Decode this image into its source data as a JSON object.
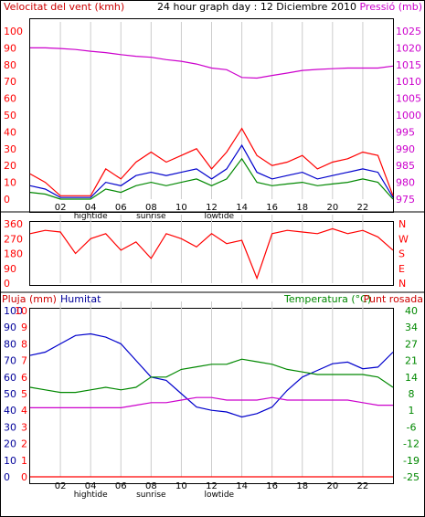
{
  "chart_data": [
    {
      "type": "line",
      "panel": "wind-pressure",
      "title": "24 hour graph day : 12 Diciembre 2010",
      "left_label": "Velocitat del vent (kmh)",
      "right_label": "Pressió (mb)",
      "left_ticks": [
        "100",
        "90",
        "80",
        "70",
        "60",
        "50",
        "40",
        "30",
        "20",
        "10",
        "0"
      ],
      "left_range": [
        0,
        100
      ],
      "right_ticks": [
        "1025",
        "1020",
        "1015",
        "1010",
        "1005",
        "1000",
        "995",
        "990",
        "985",
        "980",
        "975"
      ],
      "right_range": [
        975,
        1025
      ],
      "x_hours": [
        0,
        1,
        2,
        3,
        4,
        5,
        6,
        7,
        8,
        9,
        10,
        11,
        12,
        13,
        14,
        15,
        16,
        17,
        18,
        19,
        20,
        21,
        22,
        23,
        24
      ],
      "series": [
        {
          "key": "pressure",
          "axis": "right",
          "color": "#cc00cc",
          "values": [
            1020,
            1020,
            1019.8,
            1019.5,
            1019,
            1018.6,
            1018,
            1017.5,
            1017.2,
            1016.5,
            1016,
            1015.2,
            1014,
            1013.5,
            1011.2,
            1011,
            1011.8,
            1012.5,
            1013.3,
            1013.6,
            1013.8,
            1014,
            1014,
            1014,
            1014.6
          ]
        },
        {
          "key": "gust",
          "axis": "left",
          "color": "#ff0000",
          "values": [
            15,
            10,
            2,
            2,
            2,
            18,
            12,
            22,
            28,
            22,
            26,
            30,
            18,
            28,
            42,
            26,
            20,
            22,
            26,
            18,
            22,
            24,
            28,
            26,
            2
          ]
        },
        {
          "key": "avg_speed",
          "axis": "left",
          "color": "#0000cc",
          "values": [
            8,
            6,
            1,
            1,
            1,
            10,
            8,
            14,
            16,
            14,
            16,
            18,
            12,
            18,
            32,
            16,
            12,
            14,
            16,
            12,
            14,
            16,
            18,
            16,
            1
          ]
        },
        {
          "key": "min_speed",
          "axis": "left",
          "color": "#008800",
          "values": [
            4,
            3,
            0,
            0,
            0,
            6,
            4,
            8,
            10,
            8,
            10,
            12,
            8,
            12,
            24,
            10,
            8,
            9,
            10,
            8,
            9,
            10,
            12,
            10,
            0
          ]
        }
      ]
    },
    {
      "type": "line",
      "panel": "wind-direction",
      "left_ticks": [
        "360",
        "270",
        "180",
        "90",
        "0"
      ],
      "right_ticks": [
        "N",
        "W",
        "S",
        "E",
        "N"
      ],
      "range": [
        0,
        360
      ],
      "series": [
        {
          "key": "direction",
          "color": "#ff0000",
          "values": [
            300,
            320,
            310,
            180,
            270,
            300,
            200,
            250,
            150,
            300,
            270,
            220,
            300,
            240,
            260,
            30,
            300,
            320,
            310,
            300,
            330,
            300,
            320,
            280,
            200
          ]
        }
      ]
    },
    {
      "type": "line",
      "panel": "temp-hum-rain",
      "left_label": "Pluja (mm)",
      "left2_label": "Humitat",
      "right_label": "Temperatura (°C)",
      "right2_label": "Punt rosada",
      "rain_ticks": [
        "10",
        "9",
        "8",
        "7",
        "6",
        "5",
        "4",
        "3",
        "2",
        "1",
        "0"
      ],
      "hum_ticks": [
        "100",
        "90",
        "80",
        "70",
        "60",
        "50",
        "40",
        "30",
        "20",
        "10",
        "0"
      ],
      "temp_ticks": [
        "40",
        "34",
        "27",
        "21",
        "14",
        "8",
        "1",
        "-6",
        "-12",
        "-19",
        "-25"
      ],
      "temp_range": [
        -25,
        40
      ],
      "series": [
        {
          "key": "humidity",
          "axis": "hum",
          "color": "#0000cc",
          "values": [
            73,
            75,
            80,
            85,
            86,
            84,
            80,
            70,
            60,
            58,
            50,
            42,
            40,
            39,
            36,
            38,
            42,
            52,
            60,
            64,
            68,
            69,
            65,
            66,
            75
          ]
        },
        {
          "key": "temperature",
          "axis": "temp",
          "color": "#008800",
          "values": [
            10,
            9,
            8,
            8,
            9,
            10,
            9,
            10,
            14,
            14,
            17,
            18,
            19,
            19,
            21,
            20,
            19,
            17,
            16,
            15,
            15,
            15,
            15,
            14,
            10
          ]
        },
        {
          "key": "dew_point",
          "axis": "temp",
          "color": "#cc00cc",
          "values": [
            2,
            2,
            2,
            2,
            2,
            2,
            2,
            3,
            4,
            4,
            5,
            6,
            6,
            5,
            5,
            5,
            6,
            5,
            5,
            5,
            5,
            5,
            4,
            3,
            3
          ]
        },
        {
          "key": "rain",
          "axis": "rain",
          "color": "#ff0000",
          "values": [
            0,
            0,
            0,
            0,
            0,
            0,
            0,
            0,
            0,
            0,
            0,
            0,
            0,
            0,
            0,
            0,
            0,
            0,
            0,
            0,
            0,
            0,
            0,
            0,
            0
          ]
        }
      ]
    }
  ],
  "x_ticks": [
    "02",
    "04",
    "06",
    "08",
    "10",
    "12",
    "14",
    "16",
    "18",
    "20",
    "22"
  ],
  "x_tick_hours": [
    2,
    4,
    6,
    8,
    10,
    12,
    14,
    16,
    18,
    20,
    22
  ],
  "events": [
    {
      "label": "hightide",
      "hour": 4
    },
    {
      "label": "sunrise",
      "hour": 8
    },
    {
      "label": "lowtide",
      "hour": 12.5
    }
  ],
  "colors": {
    "red": "#ff0000",
    "blue": "#0000cc",
    "green": "#008800",
    "magenta": "#cc00cc",
    "label_blue": "#000099",
    "grid": "#cccccc"
  }
}
